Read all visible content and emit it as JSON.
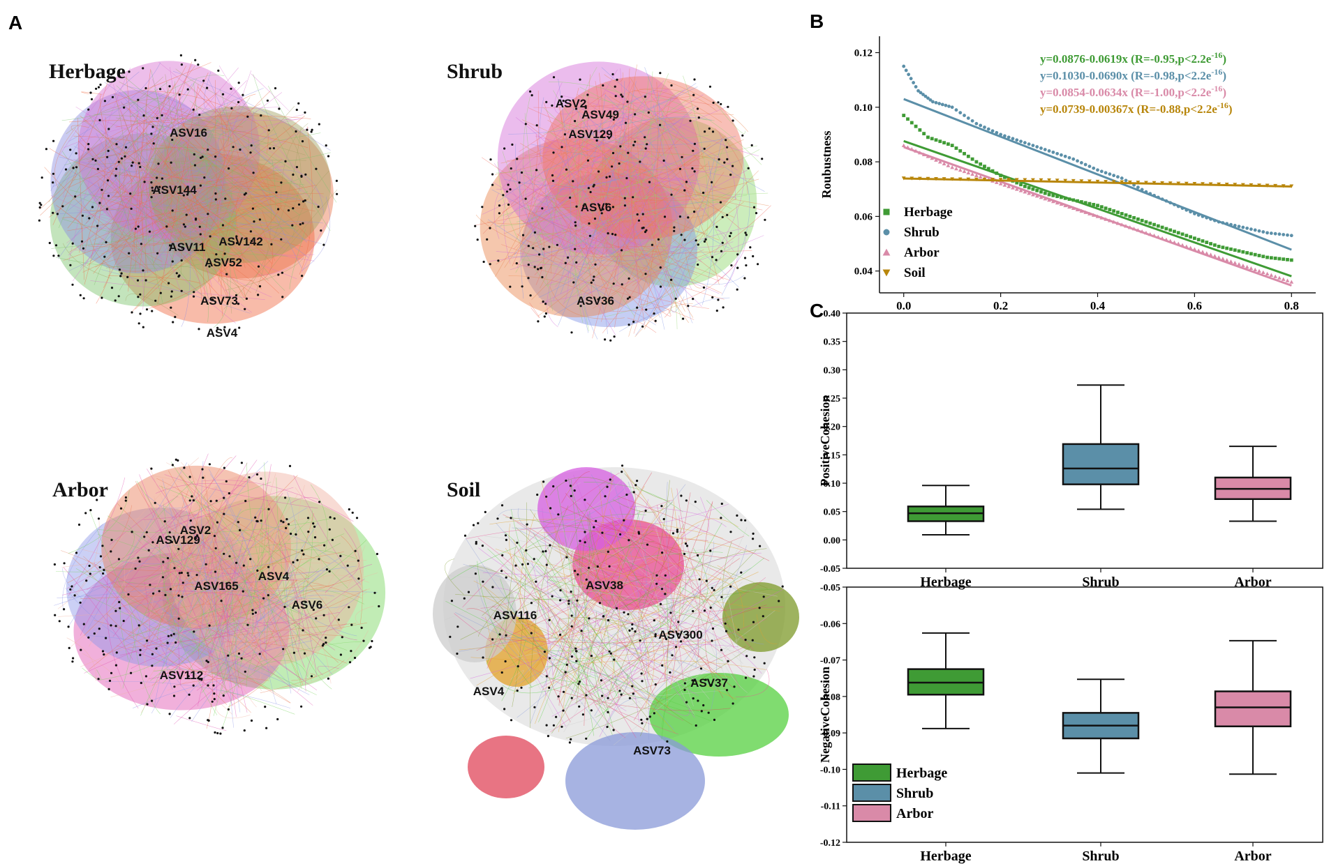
{
  "panel_letters": {
    "a": "A",
    "b": "B",
    "c": "C"
  },
  "networks": [
    {
      "title": "Herbage",
      "hubs": [
        "ASV16",
        "ASV144",
        "ASV11",
        "ASV142",
        "ASV52",
        "ASV73",
        "ASV4"
      ],
      "module_colors": [
        "#e8734a",
        "#f06840",
        "#7ac36a",
        "#8a8be0",
        "#d86fd0",
        "#a0a060"
      ]
    },
    {
      "title": "Shrub",
      "hubs": [
        "ASV2",
        "ASV49",
        "ASV129",
        "ASV6",
        "ASV36"
      ],
      "module_colors": [
        "#8fd66b",
        "#7f93e6",
        "#e8834a",
        "#d26ad8",
        "#f07060"
      ]
    },
    {
      "title": "Arbor",
      "hubs": [
        "ASV2",
        "ASV129",
        "ASV165",
        "ASV4",
        "ASV6",
        "ASV112"
      ],
      "module_colors": [
        "#76d45a",
        "#e04fb0",
        "#8c96e8",
        "#e87a55",
        "#f0b0a0"
      ]
    },
    {
      "title": "Soil",
      "hubs": [
        "ASV38",
        "ASV116",
        "ASV300",
        "ASV4",
        "ASV37",
        "ASV73"
      ],
      "module_colors": [
        "#d65ee0",
        "#e94c92",
        "#e3a12a",
        "#7e9a2a",
        "#55d040",
        "#e0455a",
        "#8a9ad8",
        "#cccccc"
      ]
    }
  ],
  "chart_data": [
    {
      "type": "scatter",
      "panel": "B",
      "ylabel": "Roubustness",
      "xlabel": "",
      "xlim": [
        -0.05,
        0.85
      ],
      "ylim": [
        0.032,
        0.126
      ],
      "xticks": [
        "0.0",
        "0.2",
        "0.4",
        "0.6",
        "0.8"
      ],
      "yticks": [
        "0.04",
        "0.06",
        "0.08",
        "0.10",
        "0.12"
      ],
      "legend": [
        "Herbage",
        "Shrub",
        "Arbor",
        "Soil"
      ],
      "series": [
        {
          "name": "Herbage",
          "color": "#3f9b35",
          "marker": "square",
          "intercept": 0.0876,
          "slope": -0.0619,
          "points": [
            [
              0.0,
              0.097
            ],
            [
              0.05,
              0.089
            ],
            [
              0.1,
              0.086
            ],
            [
              0.15,
              0.08
            ],
            [
              0.2,
              0.075
            ],
            [
              0.25,
              0.071
            ],
            [
              0.3,
              0.068
            ],
            [
              0.35,
              0.066
            ],
            [
              0.4,
              0.064
            ],
            [
              0.45,
              0.061
            ],
            [
              0.5,
              0.058
            ],
            [
              0.55,
              0.055
            ],
            [
              0.6,
              0.052
            ],
            [
              0.65,
              0.049
            ],
            [
              0.7,
              0.047
            ],
            [
              0.75,
              0.045
            ],
            [
              0.8,
              0.044
            ]
          ],
          "equation": "y=0.0876-0.0619x (R=-0.95,p<2.2e",
          "exponent": "-16",
          "close": ")"
        },
        {
          "name": "Shrub",
          "color": "#5b8fa8",
          "marker": "circle",
          "intercept": 0.103,
          "slope": -0.069,
          "points": [
            [
              0.0,
              0.115
            ],
            [
              0.03,
              0.106
            ],
            [
              0.06,
              0.102
            ],
            [
              0.1,
              0.1
            ],
            [
              0.15,
              0.094
            ],
            [
              0.2,
              0.09
            ],
            [
              0.25,
              0.087
            ],
            [
              0.3,
              0.084
            ],
            [
              0.35,
              0.081
            ],
            [
              0.4,
              0.077
            ],
            [
              0.45,
              0.074
            ],
            [
              0.5,
              0.069
            ],
            [
              0.55,
              0.065
            ],
            [
              0.6,
              0.061
            ],
            [
              0.65,
              0.058
            ],
            [
              0.7,
              0.056
            ],
            [
              0.75,
              0.054
            ],
            [
              0.8,
              0.053
            ]
          ],
          "equation": "y=0.1030-0.0690x (R=-0.98,p<2.2e",
          "exponent": "-16",
          "close": ")"
        },
        {
          "name": "Arbor",
          "color": "#d98aa8",
          "marker": "triangle-up",
          "intercept": 0.0854,
          "slope": -0.0634,
          "points": [
            [
              0.0,
              0.086
            ],
            [
              0.05,
              0.082
            ],
            [
              0.1,
              0.078
            ],
            [
              0.15,
              0.075
            ],
            [
              0.2,
              0.072
            ],
            [
              0.25,
              0.069
            ],
            [
              0.3,
              0.066
            ],
            [
              0.35,
              0.063
            ],
            [
              0.4,
              0.06
            ],
            [
              0.45,
              0.057
            ],
            [
              0.5,
              0.054
            ],
            [
              0.55,
              0.051
            ],
            [
              0.6,
              0.048
            ],
            [
              0.65,
              0.045
            ],
            [
              0.7,
              0.042
            ],
            [
              0.75,
              0.039
            ],
            [
              0.8,
              0.036
            ]
          ],
          "equation": "y=0.0854-0.0634x (R=-1.00,p<2.2e",
          "exponent": "-16",
          "close": ")"
        },
        {
          "name": "Soil",
          "color": "#b8860b",
          "marker": "triangle-down",
          "intercept": 0.0739,
          "slope": -0.00367,
          "points": [
            [
              0.0,
              0.074
            ],
            [
              0.1,
              0.0737
            ],
            [
              0.2,
              0.0735
            ],
            [
              0.3,
              0.0733
            ],
            [
              0.4,
              0.0728
            ],
            [
              0.5,
              0.0724
            ],
            [
              0.6,
              0.072
            ],
            [
              0.7,
              0.0716
            ],
            [
              0.8,
              0.0711
            ]
          ],
          "equation": "y=0.0739-0.00367x (R=-0.88,p<2.2e",
          "exponent": "-16",
          "close": ")"
        }
      ]
    },
    {
      "type": "box",
      "panel": "C",
      "ylabel": "PositiveCohesion",
      "categories": [
        "Herbage",
        "Shrub",
        "Arbor"
      ],
      "ylim": [
        -0.05,
        0.4
      ],
      "yticks": [
        "-0.05",
        "0.00",
        "0.05",
        "0.10",
        "0.15",
        "0.20",
        "0.25",
        "0.30",
        "0.35",
        "0.40"
      ],
      "boxes": [
        {
          "name": "Herbage",
          "color": "#3f9b35",
          "min": 0.009,
          "q1": 0.033,
          "median": 0.047,
          "q3": 0.059,
          "max": 0.096
        },
        {
          "name": "Shrub",
          "color": "#5b8fa8",
          "min": 0.054,
          "q1": 0.098,
          "median": 0.126,
          "q3": 0.169,
          "max": 0.273
        },
        {
          "name": "Arbor",
          "color": "#d98aa8",
          "min": 0.033,
          "q1": 0.072,
          "median": 0.09,
          "q3": 0.11,
          "max": 0.165
        }
      ]
    },
    {
      "type": "box",
      "panel": "C",
      "ylabel": "NegativeCohesion",
      "categories": [
        "Herbage",
        "Shrub",
        "Arbor"
      ],
      "ylim": [
        -0.12,
        -0.05
      ],
      "yticks": [
        "-0.12",
        "-0.11",
        "-0.10",
        "-0.09",
        "-0.08",
        "-0.07",
        "-0.06",
        "-0.05"
      ],
      "legend": [
        "Herbage",
        "Shrub",
        "Arbor"
      ],
      "boxes": [
        {
          "name": "Herbage",
          "color": "#3f9b35",
          "min": -0.0888,
          "q1": -0.0795,
          "median": -0.0762,
          "q3": -0.0725,
          "max": -0.0626
        },
        {
          "name": "Shrub",
          "color": "#5b8fa8",
          "min": -0.101,
          "q1": -0.0915,
          "median": -0.088,
          "q3": -0.0845,
          "max": -0.0753
        },
        {
          "name": "Arbor",
          "color": "#d98aa8",
          "min": -0.1013,
          "q1": -0.0882,
          "median": -0.083,
          "q3": -0.0786,
          "max": -0.0647
        }
      ]
    }
  ]
}
